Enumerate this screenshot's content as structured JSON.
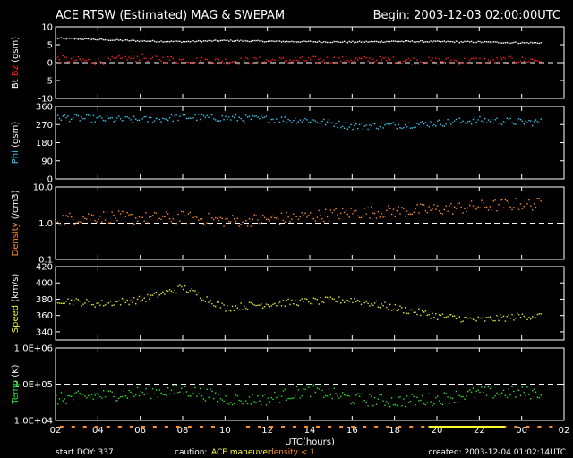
{
  "header": {
    "title": "ACE RTSW (Estimated) MAG & SWEPAM",
    "begin": "Begin: 2003-12-03 02:00:00UTC"
  },
  "footer": {
    "start_doy": "start DOY: 337",
    "caution": "caution:",
    "ace_maneuver": "ACE maneuver",
    "density_note": "density < 1",
    "created": "created: 2003-12-04 01:02:14UTC",
    "xlabel": "UTC(hours)"
  },
  "colors": {
    "bt": "#ffffff",
    "bz": "#ff2020",
    "phi": "#3cc8f0",
    "density": "#ff8c2a",
    "speed": "#e8e83c",
    "temp": "#2ee02e",
    "maneuver": "#ffff30",
    "low_density": "#ff8c2a"
  },
  "chart_data": [
    {
      "type": "scatter",
      "panel": "mag",
      "ylabel_parts": [
        "Bt",
        "Bz",
        "(gsm)"
      ],
      "ylim": [
        -10,
        10
      ],
      "yticks": [
        "10",
        "5",
        "0",
        "-5",
        "-10"
      ],
      "ytick_values": [
        10,
        5,
        0,
        -5,
        -10
      ],
      "dashed_at": [
        0
      ],
      "series": [
        {
          "name": "Bt",
          "x": [
            0,
            2,
            4,
            6,
            8,
            10,
            12,
            14,
            16,
            18,
            20,
            22
          ],
          "y": [
            7.0,
            6.6,
            6.2,
            6.0,
            6.3,
            6.1,
            6.0,
            5.9,
            6.1,
            6.0,
            5.9,
            5.7
          ]
        },
        {
          "name": "Bz",
          "x": [
            0,
            2,
            4,
            6,
            8,
            10,
            12,
            14,
            16,
            18,
            20,
            22
          ],
          "y": [
            1.2,
            0.5,
            1.6,
            0.8,
            0.6,
            0.7,
            0.9,
            1.0,
            0.8,
            0.6,
            0.7,
            0.9
          ]
        }
      ]
    },
    {
      "type": "scatter",
      "panel": "phi",
      "ylabel_parts": [
        "Phi",
        "(gsm)"
      ],
      "ylim": [
        0,
        360
      ],
      "yticks": [
        "360",
        "270",
        "180",
        "90",
        "0"
      ],
      "ytick_values": [
        360,
        270,
        180,
        90,
        0
      ],
      "dashed_at": [],
      "series": [
        {
          "name": "Phi",
          "x": [
            0,
            2,
            4,
            6,
            8,
            10,
            12,
            14,
            16,
            18,
            20,
            22
          ],
          "y": [
            310,
            300,
            295,
            310,
            305,
            300,
            295,
            265,
            270,
            280,
            295,
            285
          ]
        }
      ]
    },
    {
      "type": "scatter",
      "panel": "density",
      "ylabel_parts": [
        "Density",
        "(/cm3)"
      ],
      "log": true,
      "ylim": [
        0.1,
        10
      ],
      "yticks": [
        "10.0",
        "1.0",
        "0.1"
      ],
      "ytick_values": [
        10,
        1,
        0.1
      ],
      "dashed_at": [
        1
      ],
      "series": [
        {
          "name": "Density",
          "x": [
            0,
            2,
            4,
            6,
            8,
            10,
            12,
            14,
            16,
            18,
            20,
            22
          ],
          "y": [
            1.3,
            1.6,
            1.4,
            1.5,
            1.2,
            1.3,
            1.6,
            2.0,
            2.2,
            2.5,
            3.0,
            3.5
          ]
        }
      ]
    },
    {
      "type": "scatter",
      "panel": "speed",
      "ylabel_parts": [
        "Speed",
        "(km/s)"
      ],
      "ylim": [
        330,
        420
      ],
      "yticks": [
        "420",
        "400",
        "380",
        "360",
        "340"
      ],
      "ytick_values": [
        420,
        400,
        380,
        360,
        340
      ],
      "dashed_at": [],
      "series": [
        {
          "name": "Speed",
          "x": [
            0,
            2,
            4,
            6,
            8,
            10,
            12,
            14,
            16,
            18,
            20,
            22
          ],
          "y": [
            380,
            375,
            380,
            395,
            370,
            375,
            378,
            380,
            370,
            360,
            355,
            360
          ]
        }
      ]
    },
    {
      "type": "scatter",
      "panel": "temp",
      "ylabel_parts": [
        "Temp",
        "(K)"
      ],
      "log": true,
      "ylim": [
        10000,
        1000000
      ],
      "yticks": [
        "1.0E+06",
        "1.0E+05",
        "1.0E+04"
      ],
      "ytick_values": [
        1000000,
        100000,
        10000
      ],
      "dashed_at": [
        100000
      ],
      "series": [
        {
          "name": "Temp",
          "x": [
            0,
            2,
            4,
            6,
            8,
            10,
            12,
            14,
            16,
            18,
            20,
            22
          ],
          "y": [
            40000,
            50000,
            60000,
            70000,
            40000,
            40000,
            70000,
            40000,
            35000,
            40000,
            60000,
            60000
          ]
        }
      ]
    }
  ],
  "x_axis": {
    "range_hours": [
      0,
      24
    ],
    "tick_labels": [
      "02",
      "04",
      "06",
      "08",
      "10",
      "12",
      "14",
      "16",
      "18",
      "20",
      "22",
      "00",
      "02"
    ]
  }
}
